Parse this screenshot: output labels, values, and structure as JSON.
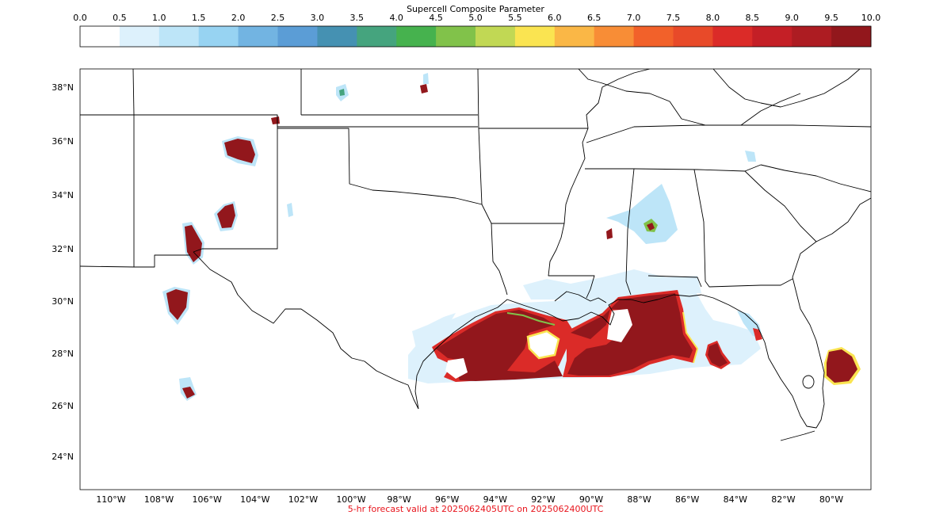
{
  "colorbar": {
    "title": "Supercell Composite Parameter",
    "ticks": [
      "0.0",
      "0.5",
      "1.0",
      "1.5",
      "2.0",
      "2.5",
      "3.0",
      "3.5",
      "4.0",
      "4.5",
      "5.0",
      "5.5",
      "6.0",
      "6.5",
      "7.0",
      "7.5",
      "8.0",
      "8.5",
      "9.0",
      "9.5",
      "10.0"
    ],
    "colors": [
      "#ffffff",
      "#ddf1fc",
      "#bde5f8",
      "#97d3f2",
      "#72b4e2",
      "#5b9dd6",
      "#4591b2",
      "#45a47e",
      "#46b24e",
      "#81c24a",
      "#c1d854",
      "#fae451",
      "#fab746",
      "#f88d36",
      "#f2612a",
      "#e84a29",
      "#db2b28",
      "#c41f26",
      "#ad1c22",
      "#92171c"
    ]
  },
  "map": {
    "lat_labels": [
      "38°N",
      "36°N",
      "34°N",
      "32°N",
      "30°N",
      "28°N",
      "26°N",
      "24°N"
    ],
    "lon_labels": [
      "110°W",
      "108°W",
      "106°W",
      "104°W",
      "102°W",
      "100°W",
      "98°W",
      "96°W",
      "94°W",
      "92°W",
      "90°W",
      "88°W",
      "86°W",
      "84°W",
      "82°W",
      "80°W"
    ],
    "field_colors": {
      "max": "#92171c",
      "high": "#db2b28",
      "mid": "#fae451",
      "low": "#81c24a",
      "light": "#bde5f8",
      "faint": "#ddf1fc"
    }
  },
  "footer": "5-hr forecast valid at 2025062405UTC on 2025062400UTC"
}
